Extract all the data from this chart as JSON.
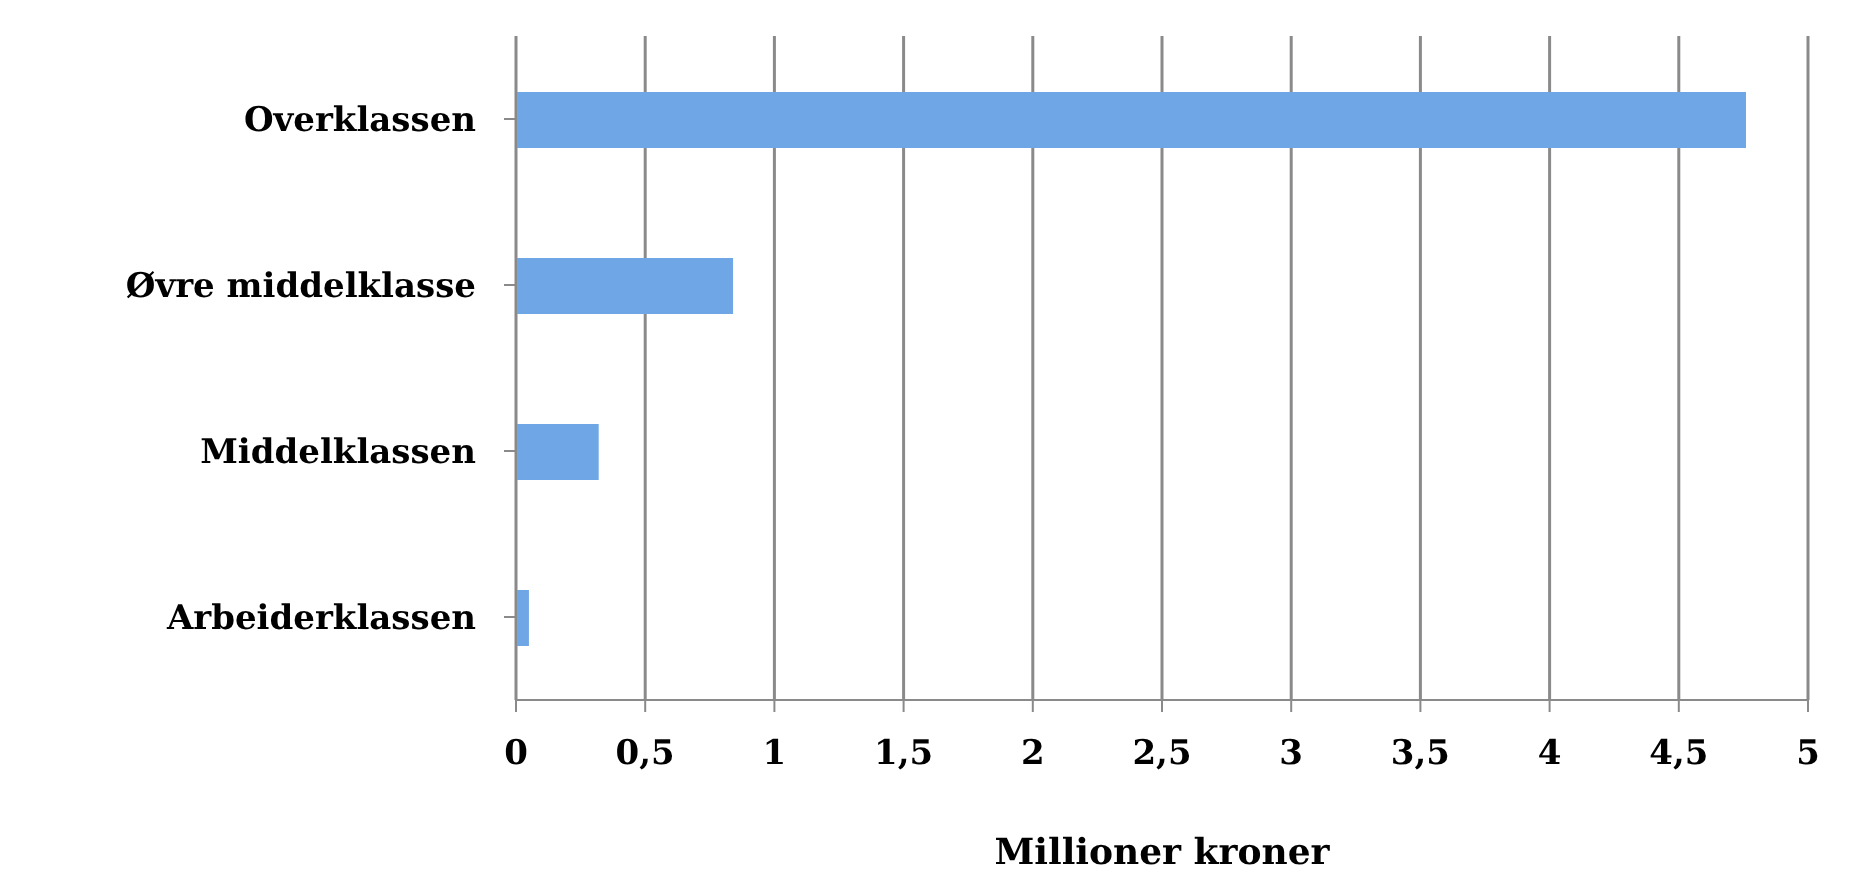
{
  "chart_data": {
    "type": "bar",
    "orientation": "horizontal",
    "categories": [
      "Overklassen",
      "Øvre middelklasse",
      "Middelklassen",
      "Arbeiderklassen"
    ],
    "values": [
      4.76,
      0.84,
      0.32,
      0.05
    ],
    "color": "#6fa6e6",
    "xlabel": "Millioner kroner",
    "xlim": [
      0,
      5
    ],
    "xticks": [
      0,
      {
        "value": 0.5,
        "label": "0,5"
      },
      1,
      {
        "value": 1.5,
        "label": "1,5"
      },
      2,
      {
        "value": 2.5,
        "label": "2,5"
      },
      3,
      {
        "value": 3.5,
        "label": "3,5"
      },
      4,
      {
        "value": 4.5,
        "label": "4,5"
      },
      5
    ],
    "grid": "x"
  }
}
